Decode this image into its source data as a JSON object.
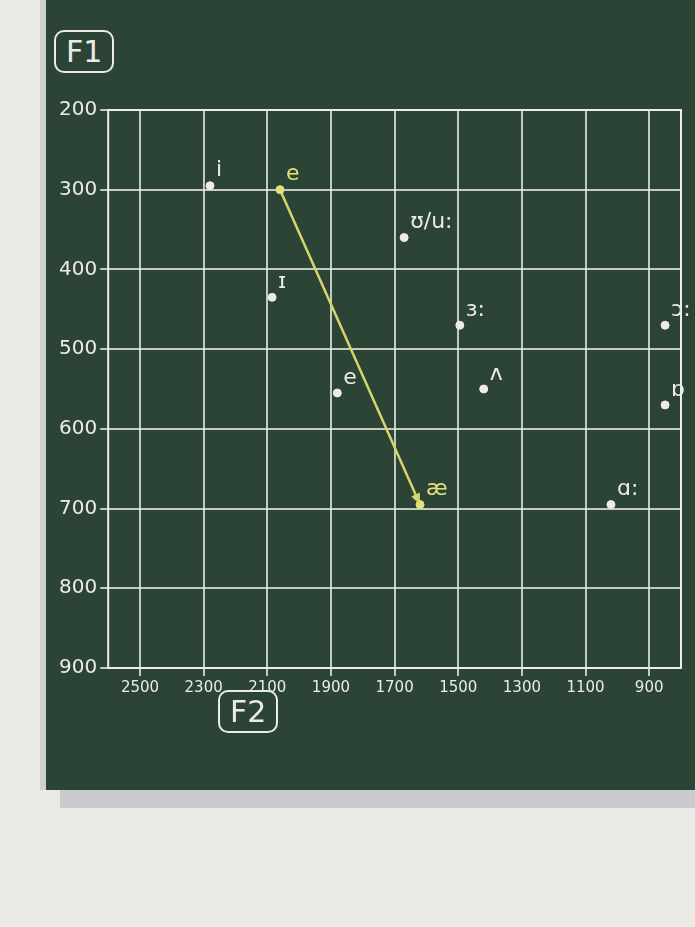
{
  "chart_data": {
    "type": "scatter",
    "x_label": "F2",
    "y_label": "F1",
    "xlim": [
      2600,
      800
    ],
    "xticks": [
      2500,
      2300,
      2100,
      1900,
      1700,
      1500,
      1300,
      1100,
      900
    ],
    "ylim": [
      900,
      200
    ],
    "yticks": [
      200,
      300,
      400,
      500,
      600,
      700,
      800,
      900
    ],
    "grid": true,
    "marker": "circle",
    "tick_labels": true,
    "points": [
      {
        "label": "i",
        "x": 2280,
        "y": 295,
        "color": "#ecece4"
      },
      {
        "label": "e",
        "x": 2060,
        "y": 300,
        "color": "#e2e27a"
      },
      {
        "label": "ʊ/u:",
        "x": 1670,
        "y": 360,
        "color": "#ecece4"
      },
      {
        "label": "ɪ",
        "x": 2085,
        "y": 435,
        "color": "#ecece4"
      },
      {
        "label": "ɜ:",
        "x": 1495,
        "y": 470,
        "color": "#ecece4"
      },
      {
        "label": "ɔ:",
        "x": 850,
        "y": 470,
        "color": "#ecece4"
      },
      {
        "label": "e",
        "x": 1880,
        "y": 555,
        "color": "#ecece4"
      },
      {
        "label": "ʌ",
        "x": 1420,
        "y": 550,
        "color": "#ecece4"
      },
      {
        "label": "ɒ",
        "x": 850,
        "y": 570,
        "color": "#ecece4"
      },
      {
        "label": "æ",
        "x": 1620,
        "y": 695,
        "color": "#e2e27a"
      },
      {
        "label": "ɑ:",
        "x": 1020,
        "y": 695,
        "color": "#ecece4"
      }
    ],
    "arrows": [
      {
        "x": [
          2060,
          1620
        ],
        "y": [
          300,
          695
        ],
        "color": "#d6d66a"
      }
    ]
  }
}
